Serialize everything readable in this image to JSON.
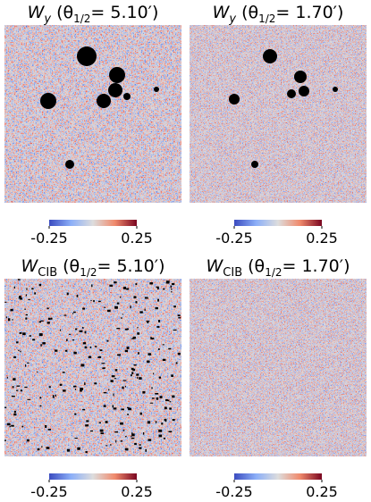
{
  "panels": [
    {
      "title": {
        "symbol": "W",
        "subscript": "y",
        "open": "(θ",
        "theta_sub": "1/2",
        "rest": "= 5.10′)"
      },
      "colorbar": {
        "ticks": [
          -0.25,
          0.25
        ]
      }
    },
    {
      "title": {
        "symbol": "W",
        "subscript": "y",
        "open": "(θ",
        "theta_sub": "1/2",
        "rest": "= 1.70′)"
      },
      "colorbar": {
        "ticks": [
          -0.25,
          0.25
        ]
      }
    },
    {
      "title": {
        "symbol": "W",
        "subscript": "CIB",
        "open": "(θ",
        "theta_sub": "1/2",
        "rest": "= 5.10′)"
      },
      "colorbar": {
        "ticks": [
          -0.25,
          0.25
        ]
      }
    },
    {
      "title": {
        "symbol": "W",
        "subscript": "CIB",
        "open": "(θ",
        "theta_sub": "1/2",
        "rest": "= 1.70′)"
      },
      "colorbar": {
        "ticks": [
          -0.25,
          0.25
        ]
      }
    }
  ]
}
